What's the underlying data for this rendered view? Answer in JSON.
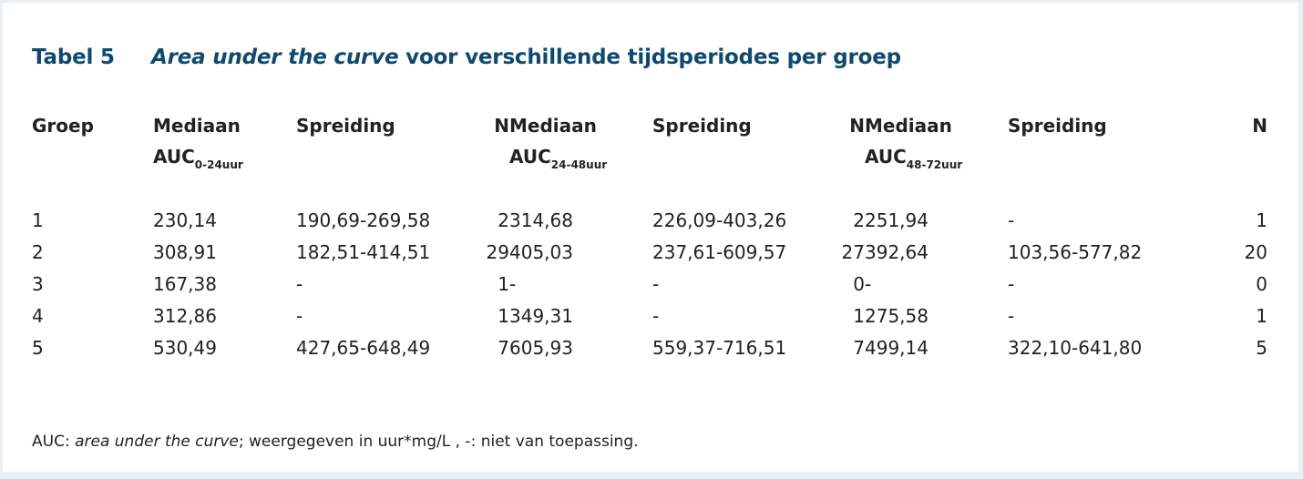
{
  "title": {
    "label": "Tabel 5",
    "italic": "Area under the curve",
    "rest": " voor verschillende tijdsperiodes per groep"
  },
  "headers": {
    "groep": "Groep",
    "mediaan": "Mediaan",
    "auc": "AUC",
    "spreiding": "Spreiding",
    "n": "N",
    "periods": [
      "0-24uur",
      "24-48uur",
      "48-72uur"
    ]
  },
  "rows": [
    [
      "1",
      "230,14",
      "190,69-269,58",
      "2",
      "314,68",
      "226,09-403,26",
      "2",
      "251,94",
      "-",
      "1"
    ],
    [
      "2",
      "308,91",
      "182,51-414,51",
      "29",
      "405,03",
      "237,61-609,57",
      "27",
      "392,64",
      "103,56-577,82",
      "20"
    ],
    [
      "3",
      "167,38",
      "-",
      "1",
      "-",
      "-",
      "0",
      "-",
      "-",
      "0"
    ],
    [
      "4",
      "312,86",
      "-",
      "1",
      "349,31",
      "-",
      "1",
      "275,58",
      "-",
      "1"
    ],
    [
      "5",
      "530,49",
      "427,65-648,49",
      "7",
      "605,93",
      "559,37-716,51",
      "7",
      "499,14",
      "322,10-641,80",
      "5"
    ]
  ],
  "footnote": {
    "prefix": "AUC: ",
    "italic": "area under the curve",
    "rest": "; weergegeven in uur*mg/L , -: niet van toepassing."
  }
}
